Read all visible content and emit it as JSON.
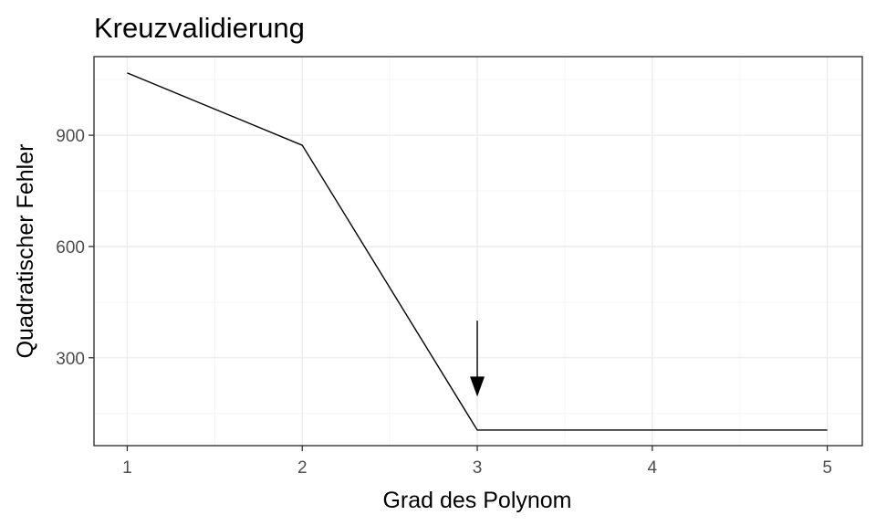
{
  "chart_data": {
    "type": "line",
    "title": "Kreuzvalidierung",
    "xlabel": "Grad des Polynom",
    "ylabel": "Quadratischer Fehler",
    "x": [
      1,
      2,
      3,
      4,
      5
    ],
    "series": [
      {
        "values": [
          1068,
          873,
          105,
          105,
          105
        ]
      }
    ],
    "xlim": [
      0.81,
      5.2
    ],
    "ylim": [
      63,
      1112
    ],
    "x_ticks": [
      1,
      2,
      3,
      4,
      5
    ],
    "y_ticks": [
      300,
      600,
      900
    ],
    "grid": true,
    "annotations": [
      {
        "type": "arrow",
        "x": 3,
        "y_from": 400,
        "y_to": 195
      }
    ],
    "colors": {
      "line": "#000000",
      "grid_major": "#ebebeb",
      "grid_minor": "#f5f5f5",
      "panel_border": "#333333"
    }
  }
}
